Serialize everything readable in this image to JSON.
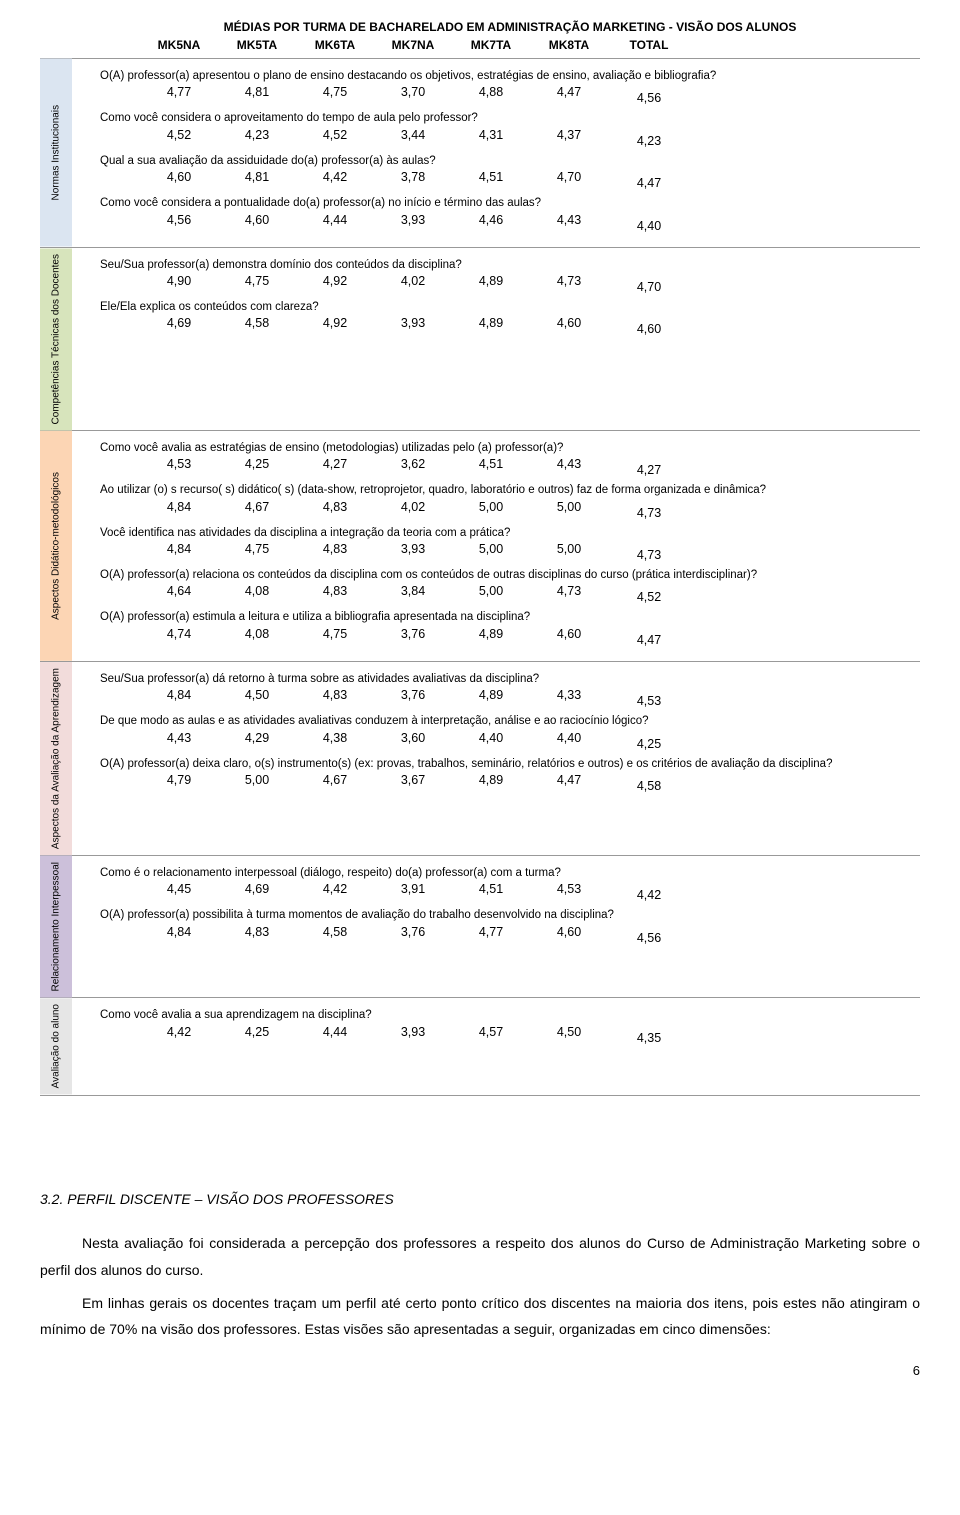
{
  "title": "MÉDIAS POR TURMA DE BACHARELADO EM ADMINISTRAÇÃO MARKETING - VISÃO DOS ALUNOS",
  "columns": [
    "MK5NA",
    "MK5TA",
    "MK6TA",
    "MK7NA",
    "MK7TA",
    "MK8TA",
    "TOTAL"
  ],
  "colors": {
    "blue": "#dbe5f1",
    "green": "#d7e4bc",
    "orange": "#fcd5b4",
    "red_bg": "#f2dcdb",
    "purple": "#ccc0da",
    "gray": "#e6e6e6",
    "red_text": "#d00000"
  },
  "sections": [
    {
      "label": "Normas Institucionais",
      "color": "side-blue",
      "questions": [
        {
          "text": "O(A) professor(a) apresentou o plano de ensino destacando os objetivos, estratégias de ensino, avaliação e bibliografia?",
          "vals": [
            "4,77",
            "4,81",
            "4,75",
            "3,70",
            "4,88",
            "4,47"
          ],
          "total": "4,56",
          "red_idx": []
        },
        {
          "text": "Como você considera o aproveitamento do tempo de aula pelo professor?",
          "vals": [
            "4,52",
            "4,23",
            "4,52",
            "3,44",
            "4,31",
            "4,37"
          ],
          "total": "4,23",
          "red_idx": [
            3
          ]
        },
        {
          "text": "Qual a sua avaliação da assiduidade do(a) professor(a) às aulas?",
          "vals": [
            "4,60",
            "4,81",
            "4,42",
            "3,78",
            "4,51",
            "4,70"
          ],
          "total": "4,47",
          "red_idx": []
        },
        {
          "text": "Como você considera a pontualidade do(a) professor(a) no início e término das aulas?",
          "vals": [
            "4,56",
            "4,60",
            "4,44",
            "3,93",
            "4,46",
            "4,43"
          ],
          "total": "4,40",
          "red_idx": []
        }
      ]
    },
    {
      "label": "Competências Técnicas dos Docentes",
      "color": "side-green",
      "questions": [
        {
          "text": "Seu/Sua professor(a) demonstra domínio dos conteúdos da disciplina?",
          "vals": [
            "4,90",
            "4,75",
            "4,92",
            "4,02",
            "4,89",
            "4,73"
          ],
          "total": "4,70",
          "red_idx": []
        },
        {
          "text": "Ele/Ela explica os conteúdos com clareza?",
          "vals": [
            "4,69",
            "4,58",
            "4,92",
            "3,93",
            "4,89",
            "4,60"
          ],
          "total": "4,60",
          "red_idx": []
        }
      ]
    },
    {
      "label": "Aspectos Didático-metodológicos",
      "color": "side-orange",
      "questions": [
        {
          "text": "Como você avalia as estratégias de ensino (metodologias) utilizadas pelo (a) professor(a)?",
          "vals": [
            "4,53",
            "4,25",
            "4,27",
            "3,62",
            "4,51",
            "4,43"
          ],
          "total": "4,27",
          "red_idx": []
        },
        {
          "text": "Ao utilizar (o) s recurso( s)  didático( s) (data-show, retroprojetor, quadro, laboratório e outros) faz de forma organizada e dinâmica?",
          "vals": [
            "4,84",
            "4,67",
            "4,83",
            "4,02",
            "5,00",
            "5,00"
          ],
          "total": "4,73",
          "red_idx": []
        },
        {
          "text": "Você identifica nas atividades da disciplina a integração da teoria com a prática?",
          "vals": [
            "4,84",
            "4,75",
            "4,83",
            "3,93",
            "5,00",
            "5,00"
          ],
          "total": "4,73",
          "red_idx": []
        },
        {
          "text": "O(A) professor(a) relaciona os conteúdos da disciplina com os conteúdos de outras disciplinas do curso (prática interdisciplinar)?",
          "vals": [
            "4,64",
            "4,08",
            "4,83",
            "3,84",
            "5,00",
            "4,73"
          ],
          "total": "4,52",
          "red_idx": []
        },
        {
          "text": "O(A) professor(a) estimula a leitura e utiliza a bibliografia apresentada na disciplina?",
          "vals": [
            "4,74",
            "4,08",
            "4,75",
            "3,76",
            "4,89",
            "4,60"
          ],
          "total": "4,47",
          "red_idx": []
        }
      ]
    },
    {
      "label": "Aspectos da Avaliação da Aprendizagem",
      "color": "side-red",
      "questions": [
        {
          "text": "Seu/Sua professor(a) dá retorno à turma sobre as atividades avaliativas da disciplina?",
          "vals": [
            "4,84",
            "4,50",
            "4,83",
            "3,76",
            "4,89",
            "4,33"
          ],
          "total": "4,53",
          "red_idx": []
        },
        {
          "text": "De que modo as aulas e as atividades avaliativas conduzem à interpretação, análise e ao raciocínio lógico?",
          "vals": [
            "4,43",
            "4,29",
            "4,38",
            "3,60",
            "4,40",
            "4,40"
          ],
          "total": "4,25",
          "red_idx": []
        },
        {
          "text": "O(A) professor(a) deixa claro, o(s) instrumento(s) (ex: provas, trabalhos, seminário, relatórios e outros)  e os critérios de avaliação da disciplina?",
          "vals": [
            "4,79",
            "5,00",
            "4,67",
            "3,67",
            "4,89",
            "4,47"
          ],
          "total": "4,58",
          "red_idx": []
        }
      ]
    },
    {
      "label": "Relacionamento Interpessoal",
      "color": "side-purple",
      "questions": [
        {
          "text": "Como é o relacionamento interpessoal (diálogo, respeito) do(a) professor(a) com a turma?",
          "vals": [
            "4,45",
            "4,69",
            "4,42",
            "3,91",
            "4,51",
            "4,53"
          ],
          "total": "4,42",
          "red_idx": []
        },
        {
          "text": "O(A) professor(a) possibilita à turma momentos de avaliação do trabalho desenvolvido na disciplina?",
          "vals": [
            "4,84",
            "4,83",
            "4,58",
            "3,76",
            "4,77",
            "4,60"
          ],
          "total": "4,56",
          "red_idx": []
        }
      ]
    },
    {
      "label": "Avaliação do aluno",
      "color": "side-gray",
      "questions": [
        {
          "text": "Como você avalia a sua aprendizagem na disciplina?",
          "vals": [
            "4,42",
            "4,25",
            "4,44",
            "3,93",
            "4,57",
            "4,50"
          ],
          "total": "4,35",
          "red_idx": []
        }
      ]
    }
  ],
  "narrative": {
    "heading": "3.2.      PERFIL DISCENTE – VISÃO DOS PROFESSORES",
    "p1": "Nesta avaliação foi considerada a percepção dos professores a respeito dos alunos do Curso de Administração Marketing sobre o perfil dos alunos do curso.",
    "p2": "Em linhas gerais os docentes traçam um perfil até certo ponto crítico dos discentes na maioria dos itens, pois estes não atingiram o mínimo de 70% na visão dos professores.  Estas visões são apresentadas a seguir, organizadas em cinco dimensões:"
  },
  "page_number": "6"
}
